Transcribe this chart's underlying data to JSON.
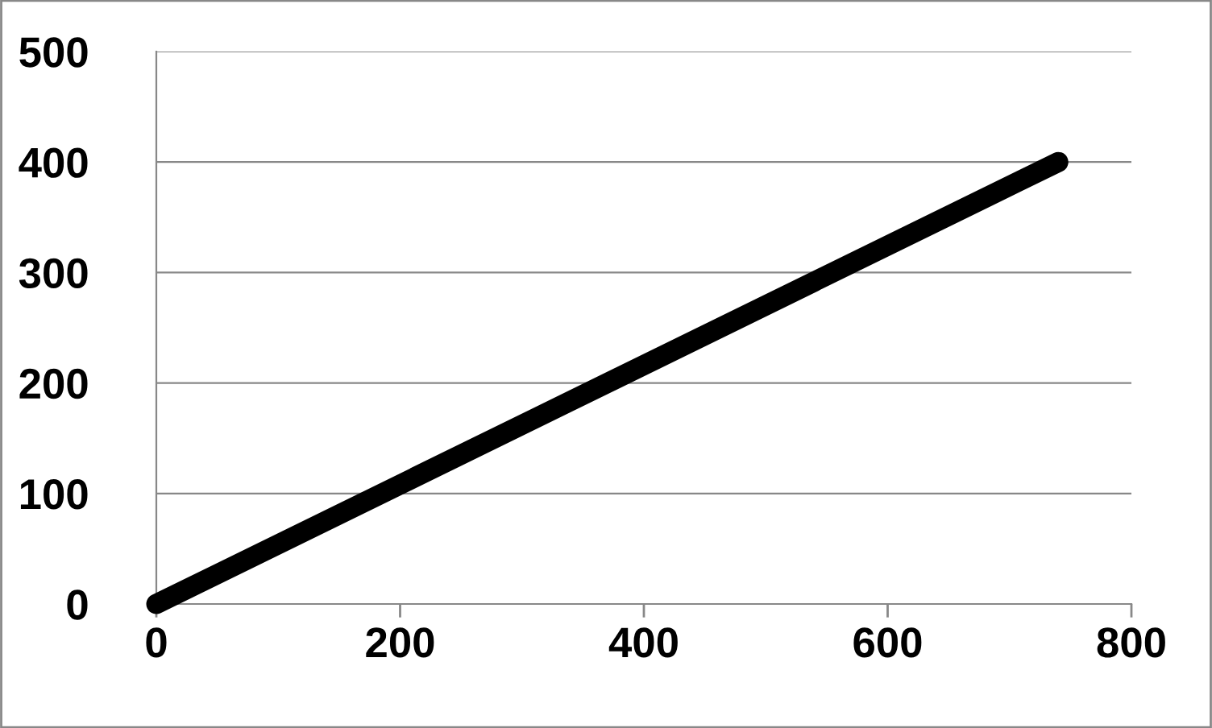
{
  "chart_data": {
    "type": "line",
    "series": [
      {
        "color": "#000000",
        "x": [
          0,
          740
        ],
        "values": [
          0,
          400
        ]
      }
    ],
    "xlim": [
      0,
      800
    ],
    "xticks": [
      0,
      200,
      400,
      600,
      800
    ],
    "ylim": [
      0,
      500
    ],
    "yticks": [
      0,
      100,
      200,
      300,
      400,
      500
    ],
    "grid": "y",
    "line_style": "solid"
  }
}
